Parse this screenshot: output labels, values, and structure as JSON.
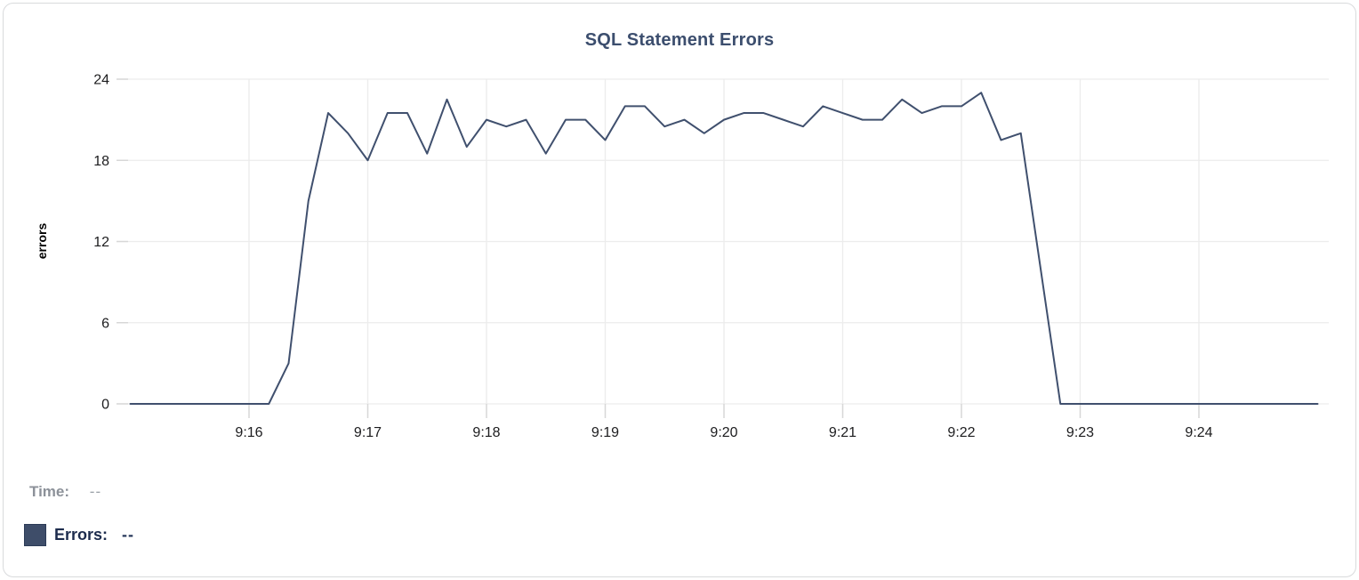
{
  "chart_data": {
    "type": "line",
    "title": "SQL Statement Errors",
    "xlabel": "",
    "ylabel": "errors",
    "ylim": [
      0,
      24
    ],
    "y_ticks": [
      0,
      6,
      12,
      18,
      24
    ],
    "x_tick_labels": [
      "9:16",
      "9:17",
      "9:18",
      "9:19",
      "9:20",
      "9:21",
      "9:22",
      "9:23",
      "9:24"
    ],
    "x_range": {
      "start": "9:15:00",
      "end": "9:25:00",
      "interval_seconds": 10
    },
    "grid": true,
    "legend_position": "bottom-left",
    "x_times": [
      "9:15:00",
      "9:15:10",
      "9:15:20",
      "9:15:30",
      "9:15:40",
      "9:15:50",
      "9:16:00",
      "9:16:10",
      "9:16:20",
      "9:16:30",
      "9:16:40",
      "9:16:50",
      "9:17:00",
      "9:17:10",
      "9:17:20",
      "9:17:30",
      "9:17:40",
      "9:17:50",
      "9:18:00",
      "9:18:10",
      "9:18:20",
      "9:18:30",
      "9:18:40",
      "9:18:50",
      "9:19:00",
      "9:19:10",
      "9:19:20",
      "9:19:30",
      "9:19:40",
      "9:19:50",
      "9:20:00",
      "9:20:10",
      "9:20:20",
      "9:20:30",
      "9:20:40",
      "9:20:50",
      "9:21:00",
      "9:21:10",
      "9:21:20",
      "9:21:30",
      "9:21:40",
      "9:21:50",
      "9:22:00",
      "9:22:10",
      "9:22:20",
      "9:22:30",
      "9:22:40",
      "9:22:50",
      "9:23:00",
      "9:23:10",
      "9:23:20",
      "9:23:30",
      "9:23:40",
      "9:23:50",
      "9:24:00",
      "9:24:10",
      "9:24:20",
      "9:24:30",
      "9:24:40",
      "9:24:50",
      "9:25:00"
    ],
    "series": [
      {
        "name": "Errors",
        "color": "#40506e",
        "values": [
          0,
          0,
          0,
          0,
          0,
          0,
          0,
          0,
          3,
          15,
          21.5,
          20,
          18,
          21.5,
          21.5,
          18.5,
          22.5,
          19,
          21,
          20.5,
          21,
          18.5,
          21,
          21,
          19.5,
          22,
          22,
          20.5,
          21,
          20,
          21,
          21.5,
          21.5,
          21,
          20.5,
          22,
          21.5,
          21,
          21,
          22.5,
          21.5,
          22,
          22,
          23,
          19.5,
          20,
          10,
          0,
          0,
          0,
          0,
          0,
          0,
          0,
          0,
          0,
          0,
          0,
          0,
          0,
          0
        ]
      }
    ]
  },
  "legend": {
    "time_label": "Time:",
    "time_value": "--",
    "errors_label": "Errors:",
    "errors_value": "--"
  },
  "colors": {
    "line": "#40506e",
    "swatch_fill": "#3e4d69",
    "swatch_border": "#2c3b57",
    "title_text": "#3c4e6e",
    "title_underline": "#a6b2cd",
    "gridline": "#ececec",
    "tick_mark": "#d7d7d7",
    "axis_text": "#1c1c1e",
    "y_axis_label_text": "#000000",
    "legend_time_text": "#8c9199",
    "legend_errors_text": "#1d2c4d",
    "card_border": "#d9dadc"
  }
}
